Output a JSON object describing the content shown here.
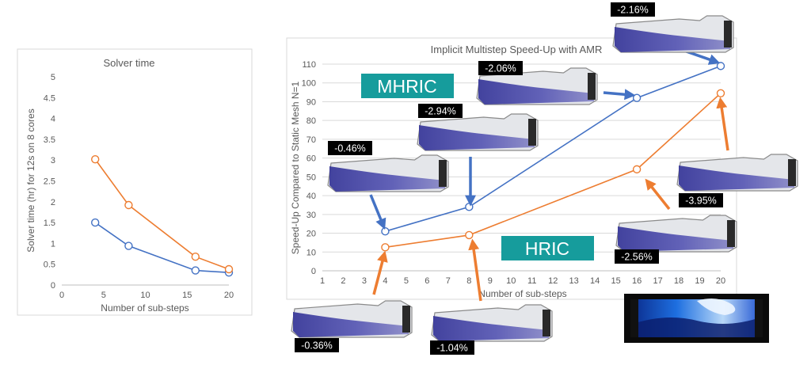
{
  "colors": {
    "mhric": "#4472c4",
    "hric": "#ed7d31",
    "tag_bg": "#169c9c",
    "arrow_blue": "#4472c4",
    "arrow_orange": "#ed7d31"
  },
  "chart_data": [
    {
      "type": "line",
      "title": "Solver time",
      "xlabel": "Number of sub-steps",
      "ylabel": "Solver time (hr) for 12s on 8 cores",
      "xlim": [
        0,
        20
      ],
      "ylim": [
        0,
        5
      ],
      "xticks": [
        "0",
        "5",
        "10",
        "15",
        "20"
      ],
      "yticks": [
        "0",
        "0.5",
        "1",
        "1.5",
        "2",
        "2.5",
        "3",
        "3.5",
        "4",
        "4.5",
        "5"
      ],
      "grid": false,
      "series": [
        {
          "color": "#4472c4",
          "x": [
            4,
            8,
            16,
            20
          ],
          "y": [
            1.5,
            0.94,
            0.35,
            0.3
          ]
        },
        {
          "color": "#ed7d31",
          "x": [
            4,
            8,
            16,
            20
          ],
          "y": [
            3.02,
            1.92,
            0.68,
            0.38
          ]
        }
      ]
    },
    {
      "type": "line",
      "title": "Implicit Multistep Speed-Up with AMR",
      "xlabel": "Number of sub-steps",
      "ylabel": "Speed-Up Compared to Static Mesh N=1",
      "xlim": [
        1,
        20
      ],
      "ylim": [
        0,
        110
      ],
      "xticks": [
        "1",
        "2",
        "3",
        "4",
        "5",
        "6",
        "7",
        "8",
        "9",
        "10",
        "11",
        "12",
        "13",
        "14",
        "15",
        "16",
        "17",
        "18",
        "19",
        "20"
      ],
      "yticks": [
        "0",
        "10",
        "20",
        "30",
        "40",
        "50",
        "60",
        "70",
        "80",
        "90",
        "100",
        "110"
      ],
      "grid": true,
      "series": [
        {
          "name": "MHRIC",
          "color": "#4472c4",
          "x": [
            4,
            8,
            16,
            20
          ],
          "y": [
            21,
            34,
            92,
            109
          ]
        },
        {
          "name": "HRIC",
          "color": "#ed7d31",
          "x": [
            4,
            8,
            16,
            20
          ],
          "y": [
            12.5,
            19,
            54,
            94.5
          ]
        }
      ]
    }
  ],
  "callouts": [
    {
      "label": "-2.16%"
    },
    {
      "label": "-2.06%"
    },
    {
      "label": "-2.94%"
    },
    {
      "label": "-0.46%"
    },
    {
      "label": "-3.95%"
    },
    {
      "label": "-2.56%"
    },
    {
      "label": "-0.36%"
    },
    {
      "label": "-1.04%"
    }
  ]
}
